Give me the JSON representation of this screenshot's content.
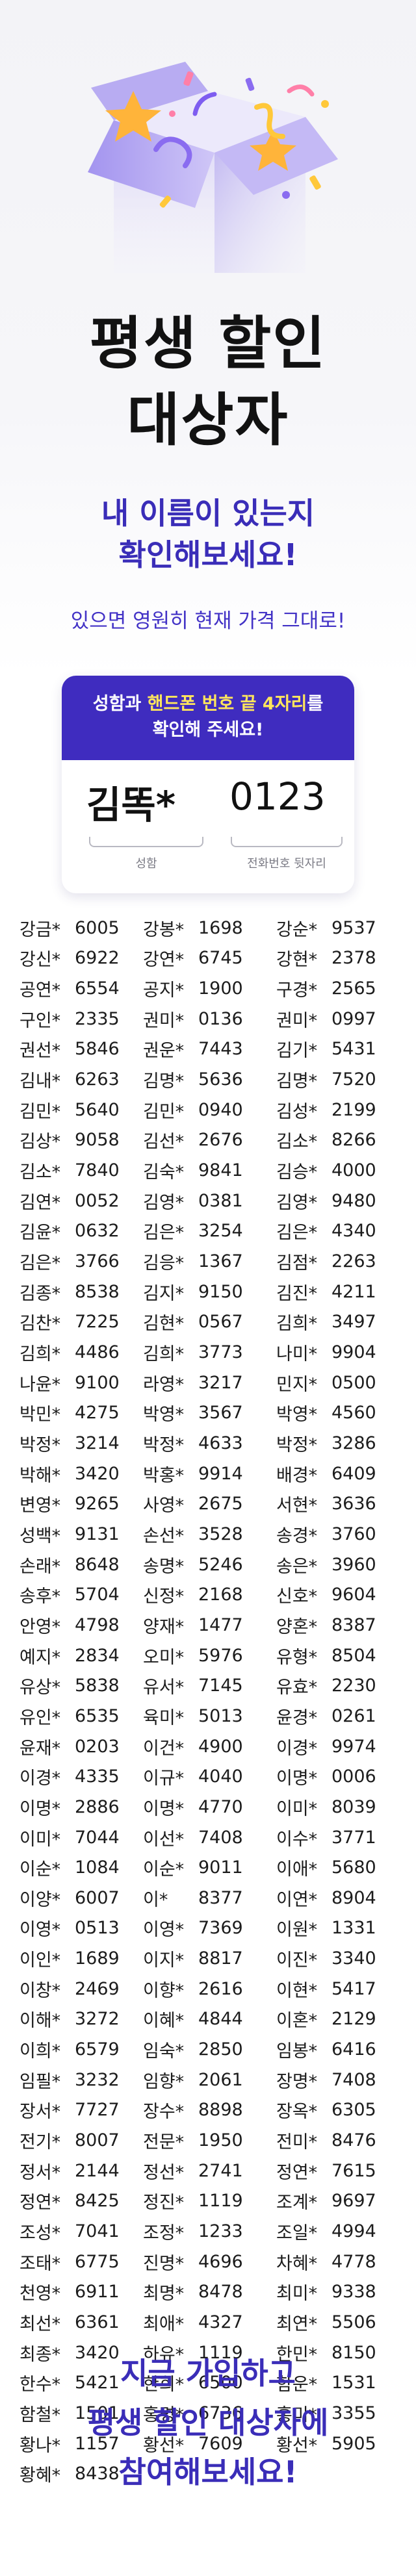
{
  "hero": {
    "title_line1": "평생 할인",
    "title_line2": "대상자",
    "subtitle_line1": "내 이름이 있는지",
    "subtitle_line2": "확인해보세요!",
    "description": "있으면 영원히 현재 가격 그대로!"
  },
  "guide": {
    "line1_a": "성함과 ",
    "line1_b": "핸드폰 번호 끝 4자리",
    "line1_c": "를",
    "line2": "확인해 주세요!",
    "example_name": "김똑*",
    "example_phone": "0123",
    "name_caption": "성함",
    "phone_caption": "전화번호 뒷자리"
  },
  "colors": {
    "primary": "#3f2cbf",
    "highlight": "#ffe65c",
    "text": "#1c1c1c"
  },
  "winners": {
    "col1": [
      [
        "강금*",
        "6005"
      ],
      [
        "강신*",
        "6922"
      ],
      [
        "공연*",
        "6554"
      ],
      [
        "구인*",
        "2335"
      ],
      [
        "권선*",
        "5846"
      ],
      [
        "김내*",
        "6263"
      ],
      [
        "김민*",
        "5640"
      ],
      [
        "김상*",
        "9058"
      ],
      [
        "김소*",
        "7840"
      ],
      [
        "김연*",
        "0052"
      ],
      [
        "김윤*",
        "0632"
      ],
      [
        "김은*",
        "3766"
      ],
      [
        "김종*",
        "8538"
      ],
      [
        "김찬*",
        "7225"
      ],
      [
        "김희*",
        "4486"
      ],
      [
        "나윤*",
        "9100"
      ],
      [
        "박민*",
        "4275"
      ],
      [
        "박정*",
        "3214"
      ],
      [
        "박해*",
        "3420"
      ],
      [
        "변영*",
        "9265"
      ],
      [
        "성백*",
        "9131"
      ],
      [
        "손래*",
        "8648"
      ],
      [
        "송후*",
        "5704"
      ],
      [
        "안영*",
        "4798"
      ],
      [
        "예지*",
        "2834"
      ],
      [
        "유상*",
        "5838"
      ],
      [
        "유인*",
        "6535"
      ],
      [
        "윤재*",
        "0203"
      ],
      [
        "이경*",
        "4335"
      ],
      [
        "이명*",
        "2886"
      ],
      [
        "이미*",
        "7044"
      ],
      [
        "이순*",
        "1084"
      ],
      [
        "이양*",
        "6007"
      ],
      [
        "이영*",
        "0513"
      ],
      [
        "이인*",
        "1689"
      ],
      [
        "이창*",
        "2469"
      ],
      [
        "이해*",
        "3272"
      ],
      [
        "이희*",
        "6579"
      ],
      [
        "임필*",
        "3232"
      ],
      [
        "장서*",
        "7727"
      ],
      [
        "전기*",
        "8007"
      ],
      [
        "정서*",
        "2144"
      ],
      [
        "정연*",
        "8425"
      ],
      [
        "조성*",
        "7041"
      ],
      [
        "조태*",
        "6775"
      ],
      [
        "천영*",
        "6911"
      ],
      [
        "최선*",
        "6361"
      ],
      [
        "최종*",
        "3420"
      ],
      [
        "한수*",
        "5421"
      ],
      [
        "함철*",
        "1501"
      ],
      [
        "황나*",
        "1157"
      ],
      [
        "황혜*",
        "8438"
      ]
    ],
    "col2": [
      [
        "강봉*",
        "1698"
      ],
      [
        "강연*",
        "6745"
      ],
      [
        "공지*",
        "1900"
      ],
      [
        "권미*",
        "0136"
      ],
      [
        "권운*",
        "7443"
      ],
      [
        "김명*",
        "5636"
      ],
      [
        "김민*",
        "0940"
      ],
      [
        "김선*",
        "2676"
      ],
      [
        "김숙*",
        "9841"
      ],
      [
        "김영*",
        "0381"
      ],
      [
        "김은*",
        "3254"
      ],
      [
        "김응*",
        "1367"
      ],
      [
        "김지*",
        "9150"
      ],
      [
        "김현*",
        "0567"
      ],
      [
        "김희*",
        "3773"
      ],
      [
        "라영*",
        "3217"
      ],
      [
        "박영*",
        "3567"
      ],
      [
        "박정*",
        "4633"
      ],
      [
        "박홍*",
        "9914"
      ],
      [
        "사영*",
        "2675"
      ],
      [
        "손선*",
        "3528"
      ],
      [
        "송명*",
        "5246"
      ],
      [
        "신정*",
        "2168"
      ],
      [
        "양재*",
        "1477"
      ],
      [
        "오미*",
        "5976"
      ],
      [
        "유서*",
        "7145"
      ],
      [
        "육미*",
        "5013"
      ],
      [
        "이건*",
        "4900"
      ],
      [
        "이규*",
        "4040"
      ],
      [
        "이명*",
        "4770"
      ],
      [
        "이선*",
        "7408"
      ],
      [
        "이순*",
        "9011"
      ],
      [
        "이*",
        "8377"
      ],
      [
        "이영*",
        "7369"
      ],
      [
        "이지*",
        "8817"
      ],
      [
        "이향*",
        "2616"
      ],
      [
        "이혜*",
        "4844"
      ],
      [
        "임숙*",
        "2850"
      ],
      [
        "임향*",
        "2061"
      ],
      [
        "장수*",
        "8898"
      ],
      [
        "전문*",
        "1950"
      ],
      [
        "정선*",
        "2741"
      ],
      [
        "정진*",
        "1119"
      ],
      [
        "조정*",
        "1233"
      ],
      [
        "진명*",
        "4696"
      ],
      [
        "최명*",
        "8478"
      ],
      [
        "최애*",
        "4327"
      ],
      [
        "하유*",
        "1119"
      ],
      [
        "한희*",
        "6500"
      ],
      [
        "홍명*",
        "6736"
      ],
      [
        "황선*",
        "7609"
      ]
    ],
    "col3": [
      [
        "강순*",
        "9537"
      ],
      [
        "강현*",
        "2378"
      ],
      [
        "구경*",
        "2565"
      ],
      [
        "권미*",
        "0997"
      ],
      [
        "김기*",
        "5431"
      ],
      [
        "김명*",
        "7520"
      ],
      [
        "김성*",
        "2199"
      ],
      [
        "김소*",
        "8266"
      ],
      [
        "김승*",
        "4000"
      ],
      [
        "김영*",
        "9480"
      ],
      [
        "김은*",
        "4340"
      ],
      [
        "김점*",
        "2263"
      ],
      [
        "김진*",
        "4211"
      ],
      [
        "김희*",
        "3497"
      ],
      [
        "나미*",
        "9904"
      ],
      [
        "민지*",
        "0500"
      ],
      [
        "박영*",
        "4560"
      ],
      [
        "박정*",
        "3286"
      ],
      [
        "배경*",
        "6409"
      ],
      [
        "서현*",
        "3636"
      ],
      [
        "송경*",
        "3760"
      ],
      [
        "송은*",
        "3960"
      ],
      [
        "신호*",
        "9604"
      ],
      [
        "양혼*",
        "8387"
      ],
      [
        "유형*",
        "8504"
      ],
      [
        "유효*",
        "2230"
      ],
      [
        "윤경*",
        "0261"
      ],
      [
        "이경*",
        "9974"
      ],
      [
        "이명*",
        "0006"
      ],
      [
        "이미*",
        "8039"
      ],
      [
        "이수*",
        "3771"
      ],
      [
        "이애*",
        "5680"
      ],
      [
        "이연*",
        "8904"
      ],
      [
        "이원*",
        "1331"
      ],
      [
        "이진*",
        "3340"
      ],
      [
        "이현*",
        "5417"
      ],
      [
        "이혼*",
        "2129"
      ],
      [
        "임봉*",
        "6416"
      ],
      [
        "장명*",
        "7408"
      ],
      [
        "장옥*",
        "6305"
      ],
      [
        "전미*",
        "8476"
      ],
      [
        "정연*",
        "7615"
      ],
      [
        "조계*",
        "9697"
      ],
      [
        "조일*",
        "4994"
      ],
      [
        "차혜*",
        "4778"
      ],
      [
        "최미*",
        "9338"
      ],
      [
        "최연*",
        "5506"
      ],
      [
        "한민*",
        "8150"
      ],
      [
        "함운*",
        "1531"
      ],
      [
        "홍미*",
        "3355"
      ],
      [
        "황선*",
        "5905"
      ]
    ]
  },
  "footer": {
    "line1": "지금 가입하고",
    "line2": "평생 할인 대상자에",
    "line3": "참여해보세요!"
  }
}
